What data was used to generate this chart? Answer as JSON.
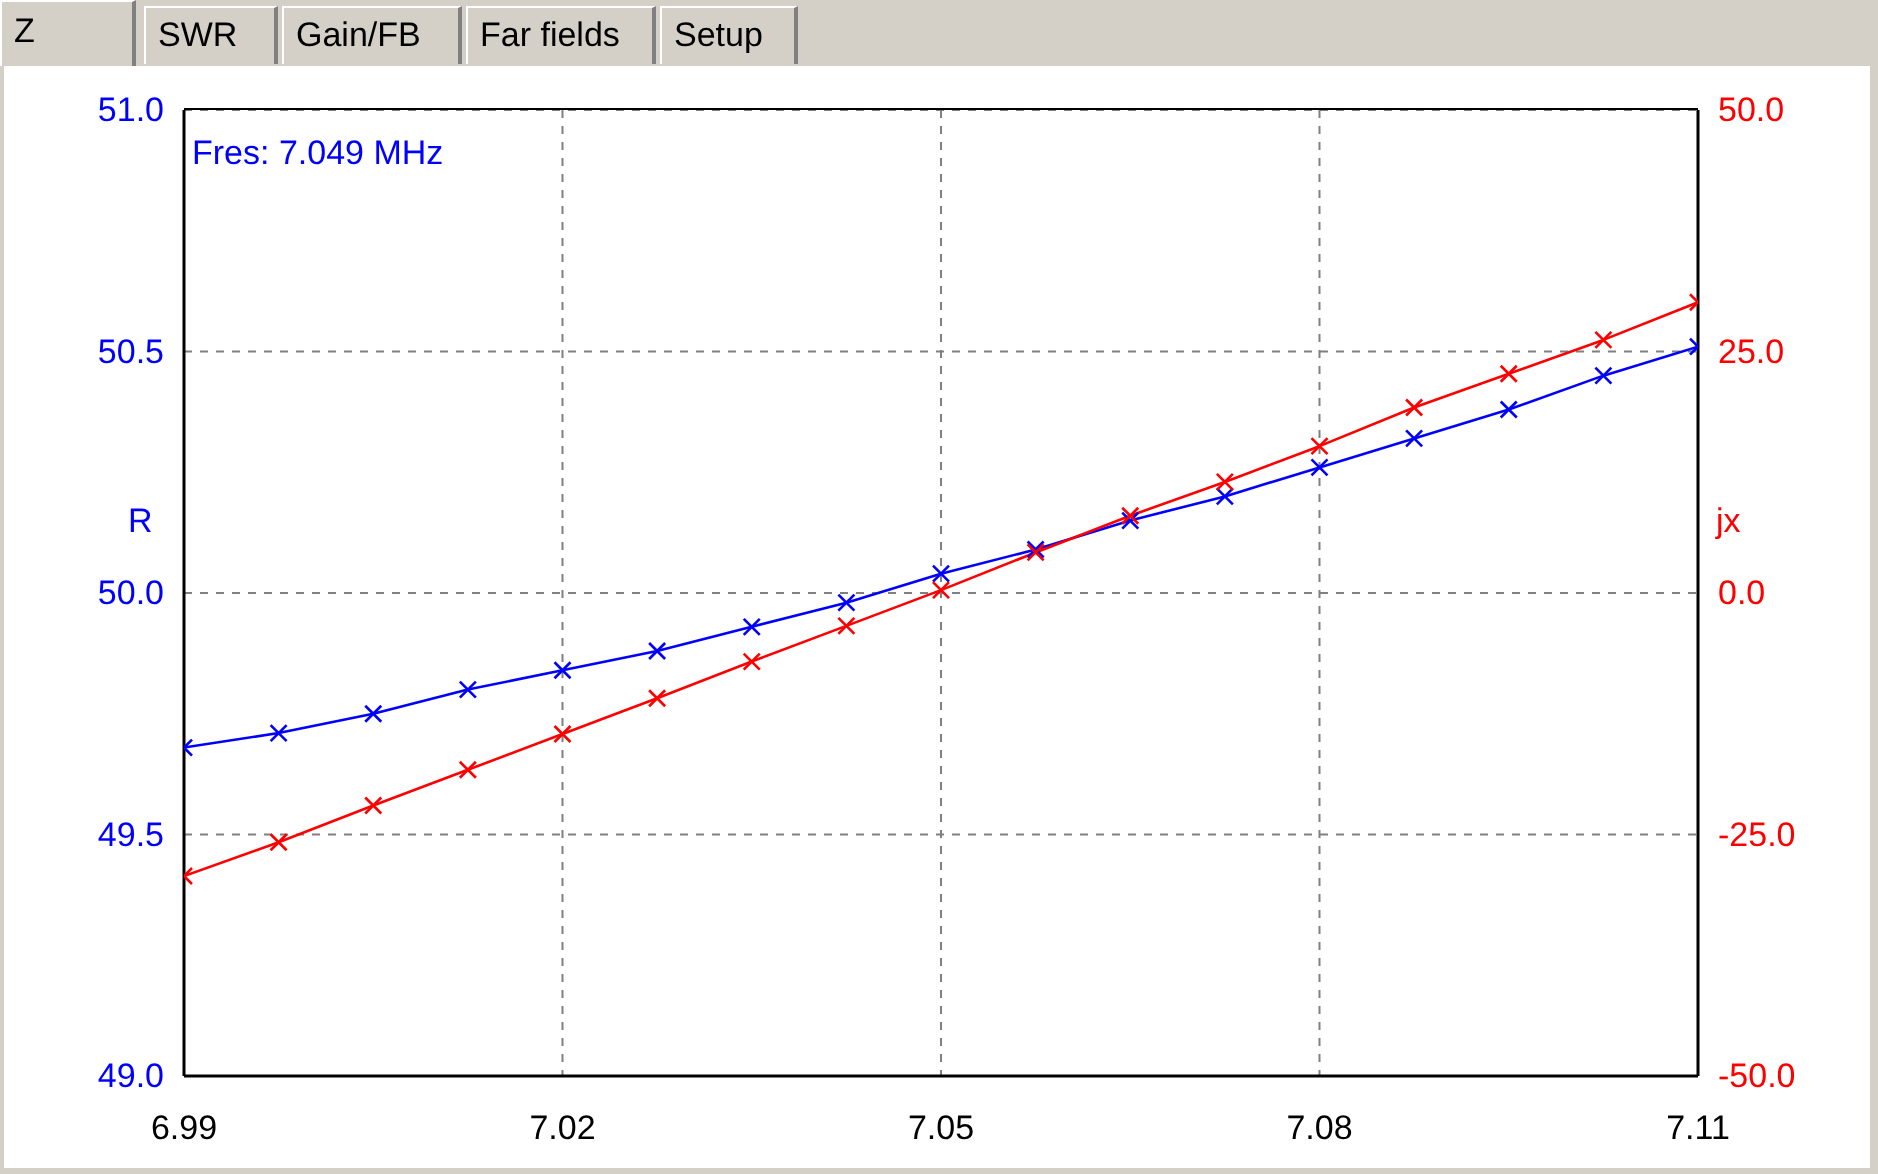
{
  "chart_data": {
    "type": "line",
    "title": "Z",
    "ylabel": "R",
    "y2label": "jx",
    "annotations": [
      "Fres: 7.049 MHz",
      "SWR",
      "Gain/FB",
      "Far fields",
      "Setup"
    ],
    "x": [
      6.99,
      6.9975,
      7.005,
      7.0125,
      7.02,
      7.0275,
      7.035,
      7.0425,
      7.05,
      7.0575,
      7.065,
      7.0725,
      7.08,
      7.0875,
      7.095,
      7.1025,
      7.11
    ],
    "series": [
      {
        "color": "#0000ff",
        "values": [
          49.68,
          49.71,
          49.75,
          49.8,
          49.84,
          49.88,
          49.93,
          49.98,
          50.04,
          50.09,
          50.15,
          50.2,
          50.26,
          50.32,
          50.38,
          50.45,
          50.51
        ]
      },
      {
        "color": "#ff0000",
        "axis": "y2",
        "values": [
          -29.3,
          -25.8,
          -22.0,
          -18.3,
          -14.6,
          -10.9,
          -7.1,
          -3.4,
          0.3,
          4.2,
          8.0,
          11.5,
          15.2,
          19.2,
          22.7,
          26.2,
          30.1
        ]
      }
    ],
    "xlim": [
      6.99,
      7.11
    ],
    "xticks": [
      6.99,
      7.02,
      7.05,
      7.08,
      7.11
    ],
    "ylim": [
      49,
      51
    ],
    "yticks": [
      {
        "value": 49,
        "label": "49.0"
      },
      {
        "value": 49.5,
        "label": "49.5"
      },
      {
        "value": 50,
        "label": "50.0"
      },
      {
        "value": 50.5,
        "label": "50.5"
      },
      {
        "value": 51,
        "label": "51.0"
      }
    ],
    "y2lim": [
      -50,
      50
    ],
    "y2ticks": [
      {
        "value": -50,
        "label": "-50.0"
      },
      {
        "value": -25,
        "label": "-25.0"
      },
      {
        "value": 0,
        "label": "0.0"
      },
      {
        "value": 25,
        "label": "25.0"
      },
      {
        "value": 50,
        "label": "50.0"
      }
    ],
    "grid": true,
    "marker": "cross",
    "line_style": "solid"
  }
}
